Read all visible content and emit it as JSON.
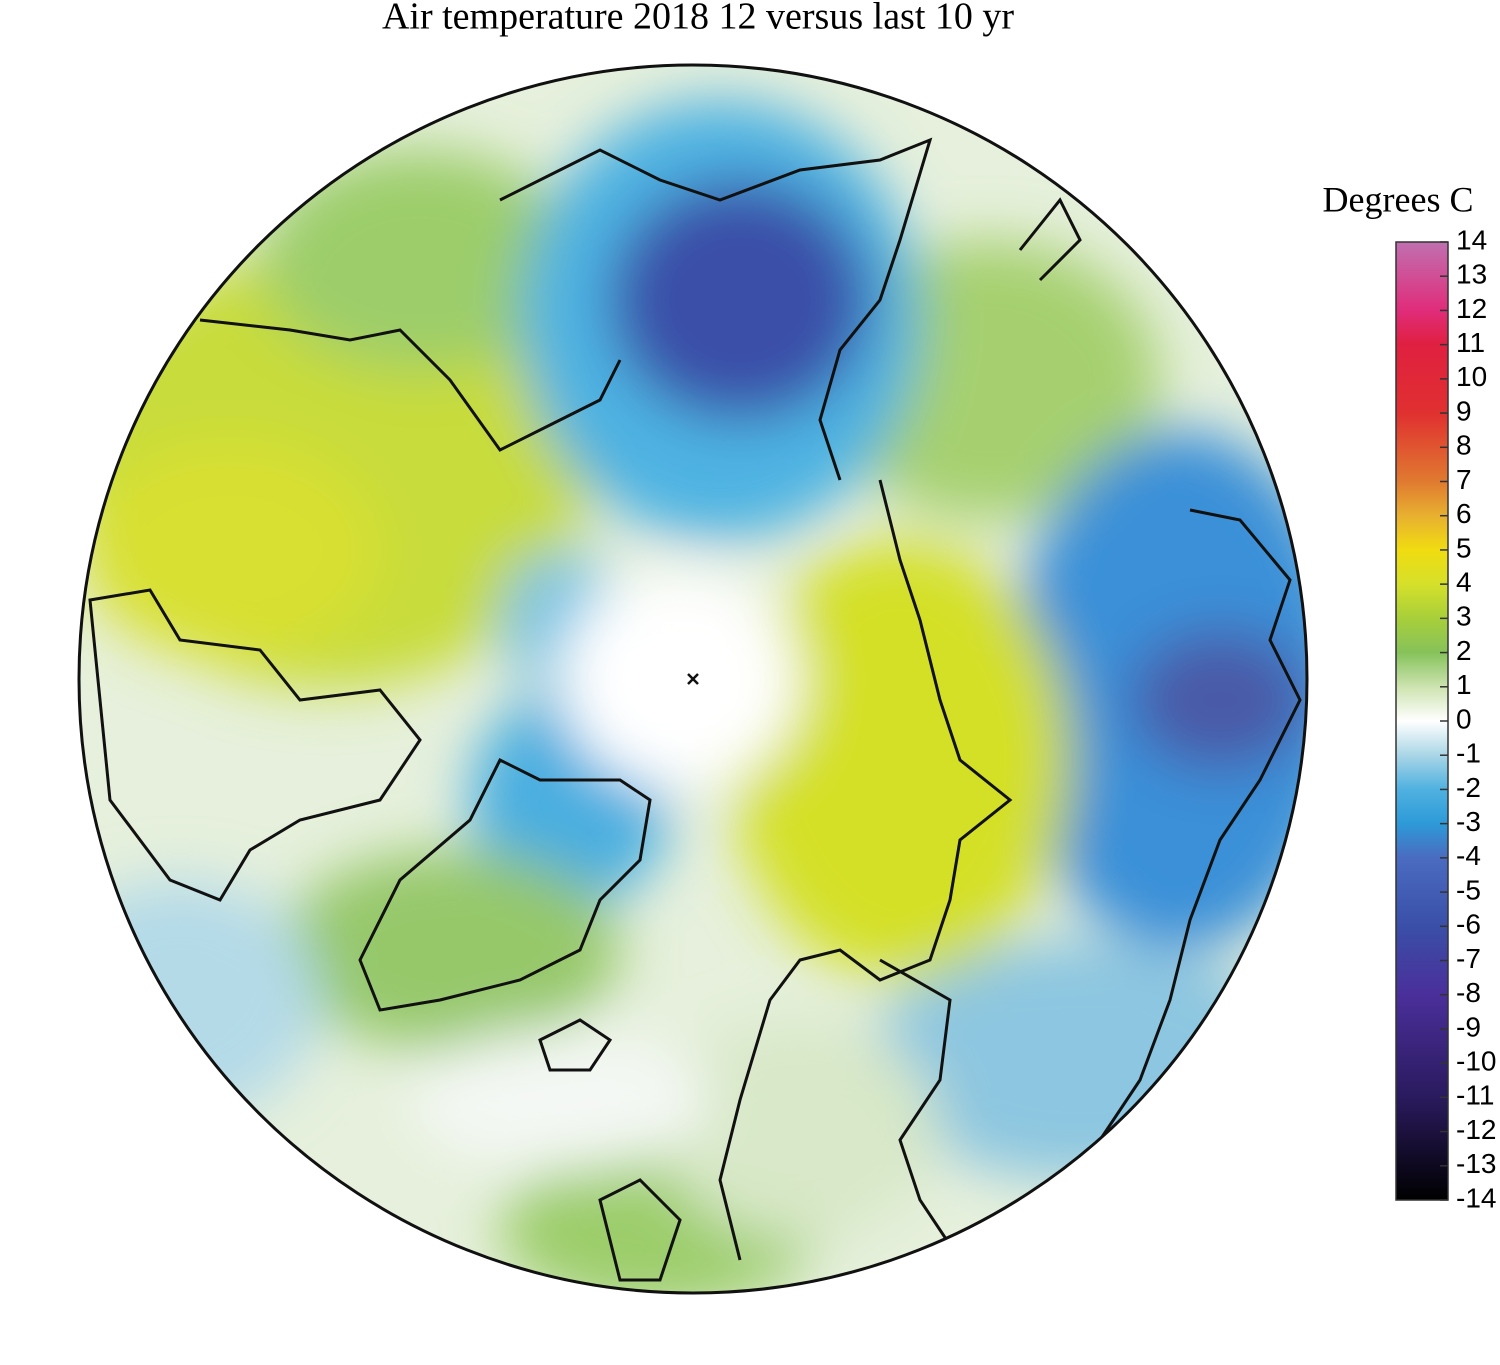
{
  "title": "Air temperature 2018 12 versus last 10 yr",
  "colorbar": {
    "label": "Degrees C",
    "range": [
      -14,
      14
    ],
    "ticks": [
      14,
      13,
      12,
      11,
      10,
      9,
      8,
      7,
      6,
      5,
      4,
      3,
      2,
      1,
      0,
      -1,
      -2,
      -3,
      -4,
      -5,
      -6,
      -7,
      -8,
      -9,
      -10,
      -11,
      -12,
      -13,
      -14
    ],
    "colors": [
      {
        "value": -14,
        "color": "#000000"
      },
      {
        "value": -11,
        "color": "#2a1a5e"
      },
      {
        "value": -8,
        "color": "#4a2f9a"
      },
      {
        "value": -6,
        "color": "#3a4fa8"
      },
      {
        "value": -4,
        "color": "#4a6cc0"
      },
      {
        "value": -3,
        "color": "#2d9ad8"
      },
      {
        "value": -2,
        "color": "#4fb1e0"
      },
      {
        "value": -1,
        "color": "#a9d6e6"
      },
      {
        "value": 0,
        "color": "#ffffff"
      },
      {
        "value": 1,
        "color": "#cde3b0"
      },
      {
        "value": 2,
        "color": "#86c25a"
      },
      {
        "value": 3,
        "color": "#a8cf3a"
      },
      {
        "value": 4,
        "color": "#d6e02a"
      },
      {
        "value": 5,
        "color": "#f0dc10"
      },
      {
        "value": 6,
        "color": "#e8b030"
      },
      {
        "value": 7,
        "color": "#e07a30"
      },
      {
        "value": 9,
        "color": "#e03030"
      },
      {
        "value": 11,
        "color": "#e02040"
      },
      {
        "value": 12,
        "color": "#e02c7a"
      },
      {
        "value": 14,
        "color": "#c070b0"
      }
    ]
  }
}
